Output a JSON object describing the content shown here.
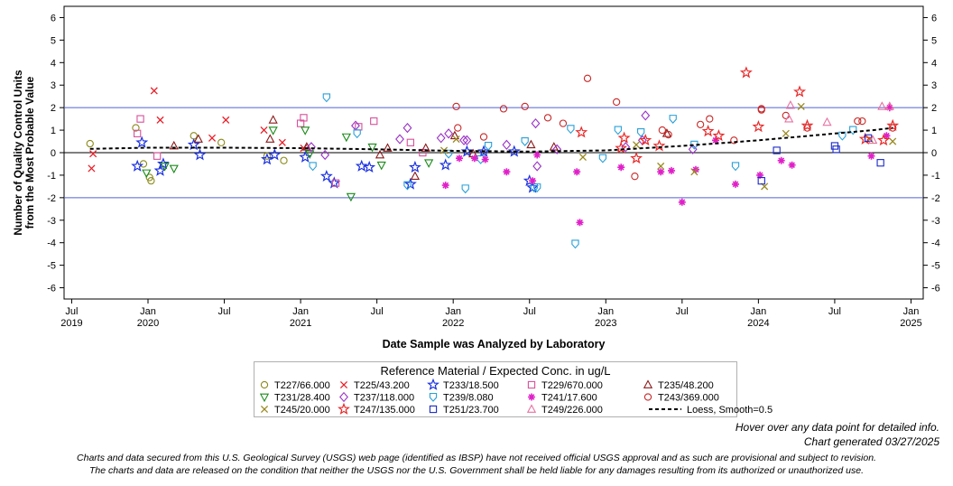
{
  "chart_data": {
    "type": "scatter",
    "ylabel_line1": "Number of Quality Control Units",
    "ylabel_line2": "from the Most Probable Value",
    "xlabel": "Date Sample was Analyzed by Laboratory",
    "ylim": [
      -6.5,
      6.5
    ],
    "yticks": [
      -6,
      -5,
      -4,
      -3,
      -2,
      -1,
      0,
      1,
      2,
      3,
      4,
      5,
      6
    ],
    "xlim": [
      2019.45,
      2025.08
    ],
    "xticks": [
      {
        "x": 2019.5,
        "line1": "Jul",
        "line2": "2019"
      },
      {
        "x": 2020.0,
        "line1": "Jan",
        "line2": "2020"
      },
      {
        "x": 2020.5,
        "line1": "Jul",
        "line2": ""
      },
      {
        "x": 2021.0,
        "line1": "Jan",
        "line2": "2021"
      },
      {
        "x": 2021.5,
        "line1": "Jul",
        "line2": ""
      },
      {
        "x": 2022.0,
        "line1": "Jan",
        "line2": "2022"
      },
      {
        "x": 2022.5,
        "line1": "Jul",
        "line2": ""
      },
      {
        "x": 2023.0,
        "line1": "Jan",
        "line2": "2023"
      },
      {
        "x": 2023.5,
        "line1": "Jul",
        "line2": ""
      },
      {
        "x": 2024.0,
        "line1": "Jan",
        "line2": "2024"
      },
      {
        "x": 2024.5,
        "line1": "Jul",
        "line2": ""
      },
      {
        "x": 2025.0,
        "line1": "Jan",
        "line2": "2025"
      }
    ],
    "reference_lines": [
      {
        "y": 2,
        "color": "#5060d8"
      },
      {
        "y": -2,
        "color": "#5060d8"
      },
      {
        "y": 0,
        "color": "#000000"
      }
    ],
    "legend_title": "Reference Material / Expected Conc. in ug/L",
    "series": [
      {
        "name": "T227/66.000",
        "marker": "circle",
        "color": "#8a8a1a",
        "points": [
          [
            2019.62,
            0.4
          ],
          [
            2019.92,
            1.1
          ],
          [
            2019.97,
            -0.5
          ],
          [
            2020.01,
            -1.1
          ],
          [
            2020.02,
            -1.25
          ],
          [
            2020.3,
            0.75
          ],
          [
            2020.48,
            0.45
          ],
          [
            2020.78,
            -0.15
          ],
          [
            2020.89,
            -0.35
          ]
        ]
      },
      {
        "name": "T225/43.200",
        "marker": "x",
        "color": "#e8202a",
        "points": [
          [
            2019.63,
            -0.7
          ],
          [
            2019.64,
            -0.05
          ],
          [
            2020.04,
            2.75
          ],
          [
            2020.08,
            1.45
          ],
          [
            2020.42,
            0.65
          ],
          [
            2020.51,
            1.45
          ],
          [
            2020.76,
            1.0
          ],
          [
            2020.88,
            0.45
          ],
          [
            2021.02,
            0.2
          ]
        ]
      },
      {
        "name": "T233/18.500",
        "marker": "star",
        "color": "#1a30e0",
        "points": [
          [
            2019.93,
            -0.6
          ],
          [
            2019.96,
            0.45
          ],
          [
            2020.08,
            -0.8
          ],
          [
            2020.1,
            -0.5
          ],
          [
            2020.3,
            0.35
          ],
          [
            2020.34,
            -0.1
          ],
          [
            2020.78,
            -0.3
          ],
          [
            2020.83,
            -0.1
          ],
          [
            2021.03,
            -0.2
          ],
          [
            2021.17,
            -1.05
          ],
          [
            2021.22,
            -1.35
          ],
          [
            2021.4,
            -0.6
          ],
          [
            2021.45,
            -0.65
          ],
          [
            2021.72,
            -1.4
          ],
          [
            2021.75,
            -0.65
          ],
          [
            2021.95,
            -0.55
          ],
          [
            2022.09,
            0.05
          ],
          [
            2022.2,
            0.05
          ],
          [
            2022.4,
            0.05
          ],
          [
            2022.5,
            -1.25
          ],
          [
            2022.52,
            -1.55
          ]
        ]
      },
      {
        "name": "T229/670.000",
        "marker": "square",
        "color": "#d8509a",
        "points": [
          [
            2019.93,
            0.85
          ],
          [
            2019.95,
            1.5
          ],
          [
            2020.06,
            -0.15
          ],
          [
            2021.0,
            1.3
          ],
          [
            2021.02,
            1.55
          ],
          [
            2021.23,
            -1.35
          ],
          [
            2021.38,
            1.15
          ],
          [
            2021.48,
            1.4
          ],
          [
            2021.72,
            0.45
          ],
          [
            2021.8,
            0.0
          ]
        ]
      },
      {
        "name": "T235/48.200",
        "marker": "triangle",
        "color": "#8a1a1a",
        "points": [
          [
            2020.17,
            0.3
          ],
          [
            2020.33,
            0.6
          ],
          [
            2020.8,
            0.6
          ],
          [
            2020.82,
            1.45
          ],
          [
            2021.04,
            0.25
          ],
          [
            2021.52,
            -0.1
          ],
          [
            2021.57,
            0.2
          ],
          [
            2021.75,
            -1.05
          ],
          [
            2021.82,
            0.2
          ],
          [
            2022.01,
            0.75
          ],
          [
            2022.13,
            -0.05
          ],
          [
            2022.51,
            0.35
          ],
          [
            2022.66,
            0.25
          ],
          [
            2023.4,
            0.85
          ]
        ]
      },
      {
        "name": "T231/28.400",
        "marker": "tri-down",
        "color": "#1a8a1a",
        "points": [
          [
            2019.99,
            -0.9
          ],
          [
            2020.11,
            -0.6
          ],
          [
            2020.17,
            -0.7
          ],
          [
            2020.82,
            1.0
          ],
          [
            2021.03,
            1.0
          ],
          [
            2021.06,
            -0.05
          ],
          [
            2021.3,
            0.7
          ],
          [
            2021.33,
            -1.95
          ],
          [
            2021.47,
            0.25
          ],
          [
            2021.53,
            -0.55
          ],
          [
            2021.84,
            -0.45
          ]
        ]
      },
      {
        "name": "T237/118.000",
        "marker": "diamond",
        "color": "#9a30c8",
        "points": [
          [
            2021.07,
            0.25
          ],
          [
            2021.16,
            -0.1
          ],
          [
            2021.36,
            1.2
          ],
          [
            2021.65,
            0.6
          ],
          [
            2021.7,
            1.1
          ],
          [
            2021.92,
            0.65
          ],
          [
            2021.97,
            0.85
          ],
          [
            2022.07,
            0.55
          ],
          [
            2022.09,
            0.55
          ],
          [
            2022.35,
            0.35
          ],
          [
            2022.54,
            1.3
          ],
          [
            2022.55,
            -0.6
          ],
          [
            2022.68,
            0.15
          ],
          [
            2023.13,
            0.25
          ],
          [
            2023.24,
            0.55
          ],
          [
            2023.26,
            1.65
          ],
          [
            2023.57,
            0.15
          ]
        ]
      },
      {
        "name": "T239/8.080",
        "marker": "shield",
        "color": "#28a0d8",
        "points": [
          [
            2021.08,
            -0.6
          ],
          [
            2021.17,
            2.45
          ],
          [
            2021.37,
            0.85
          ],
          [
            2021.7,
            -1.45
          ],
          [
            2021.97,
            -0.05
          ],
          [
            2022.08,
            -1.6
          ],
          [
            2022.18,
            -0.3
          ],
          [
            2022.23,
            0.3
          ],
          [
            2022.47,
            0.5
          ],
          [
            2022.53,
            -1.55
          ],
          [
            2022.55,
            -1.55
          ],
          [
            2022.77,
            1.05
          ],
          [
            2022.8,
            -4.05
          ],
          [
            2022.98,
            -0.25
          ],
          [
            2023.08,
            1.0
          ],
          [
            2023.23,
            0.9
          ],
          [
            2023.44,
            1.5
          ],
          [
            2023.58,
            0.35
          ],
          [
            2023.85,
            -0.6
          ],
          [
            2024.55,
            0.75
          ],
          [
            2024.62,
            1.0
          ]
        ]
      },
      {
        "name": "T241/17.600",
        "marker": "asterisk",
        "color": "#e020c8",
        "points": [
          [
            2021.95,
            -1.45
          ],
          [
            2022.04,
            -0.25
          ],
          [
            2022.14,
            -0.25
          ],
          [
            2022.21,
            -0.3
          ],
          [
            2022.35,
            -0.85
          ],
          [
            2022.52,
            -1.25
          ],
          [
            2022.55,
            -0.1
          ],
          [
            2022.81,
            -0.85
          ],
          [
            2022.83,
            -3.1
          ],
          [
            2023.1,
            -0.65
          ],
          [
            2023.36,
            -0.85
          ],
          [
            2023.43,
            -0.8
          ],
          [
            2023.5,
            -2.2
          ],
          [
            2023.59,
            -0.75
          ],
          [
            2023.72,
            0.55
          ],
          [
            2023.85,
            -1.4
          ],
          [
            2024.01,
            -1.0
          ],
          [
            2024.15,
            -0.35
          ],
          [
            2024.22,
            -0.55
          ],
          [
            2024.74,
            -0.15
          ],
          [
            2024.84,
            0.75
          ],
          [
            2024.86,
            2.0
          ]
        ]
      },
      {
        "name": "T243/369.000",
        "marker": "circle",
        "color": "#c82828",
        "points": [
          [
            2022.02,
            2.05
          ],
          [
            2022.03,
            1.1
          ],
          [
            2022.2,
            0.7
          ],
          [
            2022.33,
            1.95
          ],
          [
            2022.47,
            2.05
          ],
          [
            2022.62,
            1.55
          ],
          [
            2022.72,
            1.3
          ],
          [
            2022.88,
            3.3
          ],
          [
            2023.07,
            2.25
          ],
          [
            2023.19,
            -1.05
          ],
          [
            2023.37,
            1.0
          ],
          [
            2023.41,
            0.8
          ],
          [
            2023.62,
            1.25
          ],
          [
            2023.68,
            1.5
          ],
          [
            2023.84,
            0.55
          ],
          [
            2024.02,
            1.95
          ],
          [
            2024.02,
            1.9
          ],
          [
            2024.18,
            1.65
          ],
          [
            2024.32,
            1.1
          ],
          [
            2024.65,
            1.4
          ],
          [
            2024.68,
            1.4
          ],
          [
            2024.88,
            1.1
          ]
        ]
      },
      {
        "name": "T245/20.000",
        "marker": "x",
        "color": "#9a8a20",
        "points": [
          [
            2021.94,
            0.1
          ],
          [
            2022.02,
            0.6
          ],
          [
            2022.85,
            -0.2
          ],
          [
            2023.2,
            0.35
          ],
          [
            2023.36,
            -0.6
          ],
          [
            2023.58,
            -0.85
          ],
          [
            2024.04,
            -1.5
          ],
          [
            2024.18,
            0.85
          ],
          [
            2024.28,
            2.05
          ],
          [
            2024.73,
            0.6
          ],
          [
            2024.88,
            0.5
          ]
        ]
      },
      {
        "name": "T247/135.000",
        "marker": "star",
        "color": "#e82828",
        "points": [
          [
            2022.84,
            0.9
          ],
          [
            2023.1,
            0.2
          ],
          [
            2023.12,
            0.65
          ],
          [
            2023.2,
            -0.25
          ],
          [
            2023.26,
            0.55
          ],
          [
            2023.35,
            0.3
          ],
          [
            2023.67,
            0.95
          ],
          [
            2023.74,
            0.75
          ],
          [
            2023.92,
            3.55
          ],
          [
            2024.0,
            1.15
          ],
          [
            2024.27,
            2.7
          ],
          [
            2024.32,
            1.2
          ],
          [
            2024.7,
            0.6
          ],
          [
            2024.82,
            0.55
          ],
          [
            2024.88,
            1.2
          ]
        ]
      },
      {
        "name": "T251/23.700",
        "marker": "square",
        "color": "#1a28c8",
        "points": [
          [
            2024.02,
            -1.25
          ],
          [
            2024.12,
            0.1
          ],
          [
            2024.5,
            0.3
          ],
          [
            2024.51,
            0.15
          ],
          [
            2024.72,
            0.65
          ],
          [
            2024.8,
            -0.45
          ]
        ]
      },
      {
        "name": "T249/226.000",
        "marker": "triangle",
        "color": "#e870a0",
        "points": [
          [
            2024.2,
            1.5
          ],
          [
            2024.21,
            2.1
          ],
          [
            2024.45,
            1.35
          ],
          [
            2024.75,
            0.55
          ],
          [
            2024.81,
            2.05
          ],
          [
            2024.86,
            2.05
          ]
        ]
      },
      {
        "name": "Loess, Smooth=0.5",
        "marker": "line",
        "color": "#000000",
        "points": [
          [
            2019.62,
            0.17
          ],
          [
            2020.0,
            0.22
          ],
          [
            2020.5,
            0.22
          ],
          [
            2021.0,
            0.2
          ],
          [
            2021.5,
            0.15
          ],
          [
            2022.0,
            0.08
          ],
          [
            2022.5,
            0.05
          ],
          [
            2023.0,
            0.1
          ],
          [
            2023.5,
            0.3
          ],
          [
            2023.75,
            0.42
          ],
          [
            2024.0,
            0.55
          ],
          [
            2024.25,
            0.7
          ],
          [
            2024.5,
            0.85
          ],
          [
            2024.75,
            1.0
          ],
          [
            2024.88,
            1.1
          ]
        ]
      }
    ]
  },
  "notes": {
    "hover": "Hover over any data point for detailed info.",
    "generated": "Chart generated 03/27/2025",
    "disclaimer1": "Charts and data secured from this U.S. Geological Survey (USGS) web page (identified as IBSP) have not received official USGS approval and as such are provisional and subject to revision.",
    "disclaimer2": "The charts and data are released on the condition that neither the USGS nor the U.S. Government shall be held liable for any damages resulting from its authorized or unauthorized use."
  }
}
